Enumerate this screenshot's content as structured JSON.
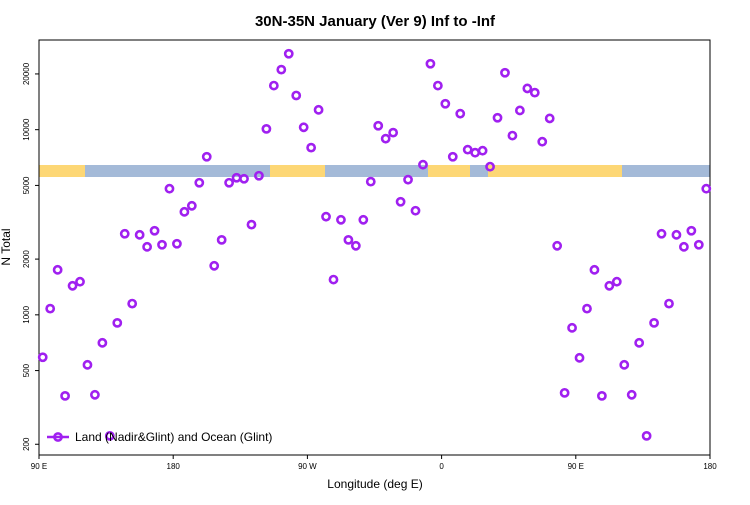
{
  "chart_data": {
    "type": "scatter",
    "title": "30N-35N January (Ver 9)   Inf to -Inf",
    "x_label": "Longitude (deg E)",
    "y_label": "N Total",
    "log_y": true,
    "xlim": [
      90,
      540
    ],
    "ylim": [
      175,
      30500
    ],
    "xticks": [
      {
        "value": 90,
        "label": "90 E"
      },
      180,
      {
        "value": 270,
        "label": "90 W"
      },
      {
        "value": 360,
        "label": "0"
      },
      {
        "value": 450,
        "label": "90 E"
      },
      {
        "value": 540,
        "label": "180"
      }
    ],
    "yticks": [
      200,
      500,
      1000,
      2000,
      5000,
      10000,
      20000
    ],
    "legend_position": "bottom-left",
    "series": [
      {
        "name": "Land (Nadir&Glint) and Ocean (Glint)",
        "color": "#a020f0",
        "x": [
          92.5,
          97.5,
          102.5,
          107.5,
          112.5,
          117.5,
          122.5,
          127.5,
          132.5,
          137.5,
          142.5,
          147.5,
          152.5,
          157.5,
          162.5,
          167.5,
          172.5,
          177.5,
          182.5,
          187.5,
          192.5,
          197.5,
          202.5,
          207.5,
          212.5,
          217.5,
          222.5,
          227.5,
          232.5,
          237.5,
          242.5,
          247.5,
          252.5,
          257.5,
          262.5,
          267.5,
          272.5,
          277.5,
          282.5,
          287.5,
          292.5,
          297.5,
          302.5,
          307.5,
          312.5,
          317.5,
          322.5,
          327.5,
          332.5,
          337.5,
          342.5,
          347.5,
          352.5,
          357.5,
          362.5,
          367.5,
          372.5,
          377.5,
          382.5,
          387.5,
          392.5,
          397.5,
          402.5,
          407.5,
          412.5,
          417.5,
          422.5,
          427.5,
          432.5,
          437.5,
          442.5,
          447.5,
          452.5,
          457.5,
          462.5,
          467.5,
          472.5,
          477.5,
          482.5,
          487.5,
          492.5,
          497.5,
          502.5,
          507.5,
          512.5,
          517.5,
          522.5,
          527.5,
          532.5,
          537.5
        ],
        "values": [
          590,
          1080,
          1750,
          365,
          1435,
          1510,
          537,
          370,
          706,
          222,
          905,
          2740,
          1150,
          2705,
          2330,
          2845,
          2390,
          4800,
          2420,
          3600,
          3880,
          5170,
          7140,
          1840,
          2540,
          5170,
          5500,
          5430,
          3070,
          5640,
          10100,
          17300,
          21100,
          25700,
          15300,
          10300,
          8000,
          12800,
          3390,
          1550,
          3260,
          2540,
          2360,
          3260,
          5240,
          10500,
          8940,
          9640,
          4080,
          5370,
          3650,
          6470,
          22700,
          17300,
          13800,
          7140,
          12200,
          7800,
          7510,
          7700,
          6310,
          11600,
          20300,
          9290,
          12700,
          16700,
          15850,
          8610,
          11500,
          2360,
          379,
          851,
          586,
          1080,
          1750,
          365,
          1435,
          1510,
          537,
          370,
          706,
          222,
          905,
          2740,
          1150,
          2705,
          2330,
          2845,
          2390,
          4800
        ]
      }
    ]
  }
}
